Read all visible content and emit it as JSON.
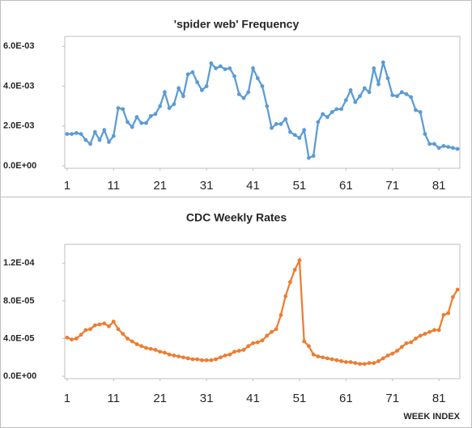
{
  "chart_data": [
    {
      "type": "line",
      "title": "'spider web' Frequency",
      "color": "#5b9bd5",
      "x": [
        1,
        2,
        3,
        4,
        5,
        6,
        7,
        8,
        9,
        10,
        11,
        12,
        13,
        14,
        15,
        16,
        17,
        18,
        19,
        20,
        21,
        22,
        23,
        24,
        25,
        26,
        27,
        28,
        29,
        30,
        31,
        32,
        33,
        34,
        35,
        36,
        37,
        38,
        39,
        40,
        41,
        42,
        43,
        44,
        45,
        46,
        47,
        48,
        49,
        50,
        51,
        52,
        53,
        54,
        55,
        56,
        57,
        58,
        59,
        60,
        61,
        62,
        63,
        64,
        65,
        66,
        67,
        68,
        69,
        70,
        71,
        72,
        73,
        74,
        75,
        76,
        77,
        78,
        79,
        80,
        81,
        82,
        83,
        84,
        85
      ],
      "values": [
        0.0016,
        0.0016,
        0.00165,
        0.0016,
        0.0013,
        0.0011,
        0.0017,
        0.0013,
        0.0018,
        0.0012,
        0.0015,
        0.0029,
        0.00285,
        0.0022,
        0.00195,
        0.00245,
        0.00215,
        0.00215,
        0.0025,
        0.0026,
        0.003,
        0.0037,
        0.0029,
        0.0031,
        0.0039,
        0.0035,
        0.0046,
        0.0047,
        0.0042,
        0.0038,
        0.004,
        0.00515,
        0.0049,
        0.005,
        0.00485,
        0.0049,
        0.0045,
        0.0036,
        0.0034,
        0.0037,
        0.0049,
        0.0044,
        0.004,
        0.003,
        0.0019,
        0.0021,
        0.0021,
        0.00235,
        0.0017,
        0.00155,
        0.0014,
        0.0018,
        0.0004,
        0.0005,
        0.0022,
        0.0026,
        0.00245,
        0.0027,
        0.00285,
        0.00285,
        0.0033,
        0.0038,
        0.0032,
        0.0035,
        0.0039,
        0.0037,
        0.0049,
        0.0041,
        0.0052,
        0.0044,
        0.00355,
        0.0035,
        0.0037,
        0.0036,
        0.00345,
        0.0028,
        0.0027,
        0.0016,
        0.0011,
        0.0011,
        0.0009,
        0.001,
        0.00095,
        0.0009,
        0.00085
      ],
      "xlim": [
        0.5,
        85.5
      ],
      "xticks": [
        1,
        11,
        21,
        31,
        41,
        51,
        61,
        71,
        81
      ],
      "ylim": [
        0,
        0.0065
      ],
      "yticks": [
        {
          "value": 0,
          "label": "0.0E+00"
        },
        {
          "value": 0.002,
          "label": "2.0E-03"
        },
        {
          "value": 0.004,
          "label": "4.0E-03"
        },
        {
          "value": 0.006,
          "label": "6.0E-03"
        }
      ]
    },
    {
      "type": "line",
      "title": "CDC Weekly Rates",
      "color": "#ed7d31",
      "xlabel": "WEEK INDEX",
      "x": [
        1,
        2,
        3,
        4,
        5,
        6,
        7,
        8,
        9,
        10,
        11,
        12,
        13,
        14,
        15,
        16,
        17,
        18,
        19,
        20,
        21,
        22,
        23,
        24,
        25,
        26,
        27,
        28,
        29,
        30,
        31,
        32,
        33,
        34,
        35,
        36,
        37,
        38,
        39,
        40,
        41,
        42,
        43,
        44,
        45,
        46,
        47,
        48,
        49,
        50,
        51,
        52,
        53,
        54,
        55,
        56,
        57,
        58,
        59,
        60,
        61,
        62,
        63,
        64,
        65,
        66,
        67,
        68,
        69,
        70,
        71,
        72,
        73,
        74,
        75,
        76,
        77,
        78,
        79,
        80,
        81,
        82,
        83,
        84,
        85
      ],
      "values": [
        4.1e-05,
        3.9e-05,
        4e-05,
        4.4e-05,
        4.9e-05,
        5e-05,
        5.4e-05,
        5.5e-05,
        5.6e-05,
        5.3e-05,
        5.8e-05,
        5e-05,
        4.5e-05,
        4e-05,
        3.7e-05,
        3.4e-05,
        3.2e-05,
        3e-05,
        2.9e-05,
        2.8e-05,
        2.6e-05,
        2.5e-05,
        2.3e-05,
        2.2e-05,
        2.1e-05,
        2e-05,
        1.9e-05,
        1.8e-05,
        1.8e-05,
        1.7e-05,
        1.7e-05,
        1.7e-05,
        1.8e-05,
        2e-05,
        2.2e-05,
        2.3e-05,
        2.6e-05,
        2.7e-05,
        2.8e-05,
        3.2e-05,
        3.5e-05,
        3.6e-05,
        3.8e-05,
        4.3e-05,
        4.7e-05,
        5e-05,
        6.5e-05,
        8.5e-05,
        0.0001,
        0.000113,
        0.000123,
        3.7e-05,
        3.2e-05,
        2.3e-05,
        2.1e-05,
        2e-05,
        1.9e-05,
        1.8e-05,
        1.7e-05,
        1.6e-05,
        1.5e-05,
        1.5e-05,
        1.4e-05,
        1.3e-05,
        1.3e-05,
        1.4e-05,
        1.4e-05,
        1.6e-05,
        1.9e-05,
        2.2e-05,
        2.4e-05,
        2.7e-05,
        3.1e-05,
        3.5e-05,
        3.6e-05,
        4e-05,
        4.3e-05,
        4.5e-05,
        4.7e-05,
        4.9e-05,
        4.9e-05,
        6.5e-05,
        6.7e-05,
        8.4e-05,
        9.2e-05
      ],
      "xlim": [
        0.5,
        85.5
      ],
      "xticks": [
        1,
        11,
        21,
        31,
        41,
        51,
        61,
        71,
        81
      ],
      "ylim": [
        0,
        0.00014
      ],
      "yticks": [
        {
          "value": 0,
          "label": "0.0E+00"
        },
        {
          "value": 4e-05,
          "label": "4.0E-05"
        },
        {
          "value": 8e-05,
          "label": "8.0E-05"
        },
        {
          "value": 0.00012,
          "label": "1.2E-04"
        }
      ]
    }
  ]
}
